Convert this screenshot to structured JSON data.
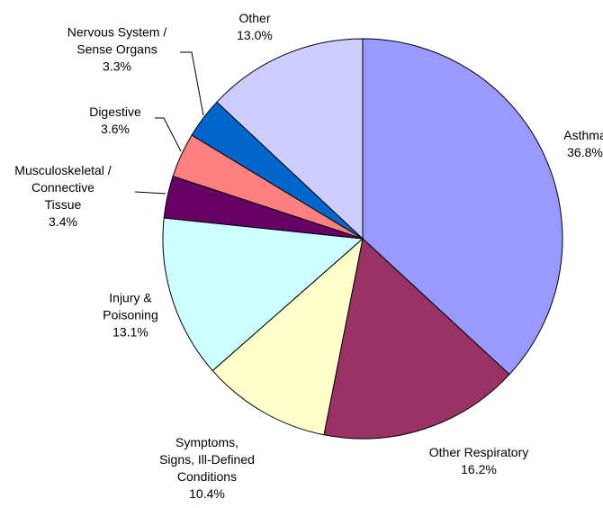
{
  "chart_data": {
    "type": "pie",
    "categories": [
      "Asthma",
      "Other Respiratory",
      "Symptoms,\nSigns, Ill-Defined\nConditions",
      "Injury &\nPoisoning",
      "Musculoskeletal /\nConnective\nTissue",
      "Digestive",
      "Nervous System /\nSense Organs",
      "Other"
    ],
    "values": [
      36.8,
      16.2,
      10.4,
      13.1,
      3.4,
      3.6,
      3.3,
      13.0
    ],
    "value_labels": [
      "36.8%",
      "16.2%",
      "10.4%",
      "13.1%",
      "3.4%",
      "3.6%",
      "3.3%",
      "13.0%"
    ],
    "colors": [
      "#9999ff",
      "#993366",
      "#ffffcc",
      "#ccffff",
      "#660066",
      "#ff8080",
      "#0066cc",
      "#ccccff"
    ]
  }
}
